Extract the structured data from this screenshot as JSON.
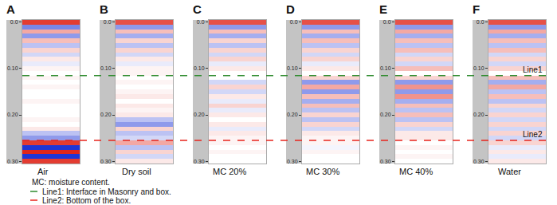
{
  "chart_data": {
    "type": "heatmap",
    "depth": [
      0,
      0.01,
      0.02,
      0.03,
      0.04,
      0.05,
      0.06,
      0.07,
      0.08,
      0.09,
      0.1,
      0.11,
      0.12,
      0.13,
      0.14,
      0.15,
      0.16,
      0.17,
      0.18,
      0.19,
      0.2,
      0.21,
      0.22,
      0.23,
      0.24,
      0.25,
      0.26,
      0.27,
      0.28,
      0.29,
      0.3
    ],
    "ylim": [
      0.305,
      -0.005
    ],
    "yticks": [
      {
        "value": 0,
        "label": "0.0"
      },
      {
        "value": 0.1,
        "label": "0.10"
      },
      {
        "value": 0.2,
        "label": "0.20"
      },
      {
        "value": 0.3,
        "label": "0.30"
      }
    ],
    "tick_labels": "y",
    "zlim": [
      -1,
      1
    ],
    "colors": [
      "#1f35d6",
      "#ffffff",
      "#e0261a"
    ],
    "panels": [
      {
        "letter": "A",
        "caption": "Air",
        "z": [
          0.9,
          -0.6,
          0.4,
          -0.5,
          0.3,
          -0.3,
          0.2,
          -0.2,
          0.1,
          -0.1,
          0.05,
          0,
          0.05,
          0,
          0.05,
          0,
          0,
          0.05,
          0,
          0,
          0,
          0.05,
          0,
          0.1,
          -0.3,
          -0.5,
          0.9,
          -1,
          1,
          -1,
          0.9
        ]
      },
      {
        "letter": "B",
        "caption": "Dry soil",
        "z": [
          0.8,
          -0.5,
          0.3,
          -0.4,
          0.2,
          -0.3,
          0.2,
          -0.2,
          0.1,
          -0.1,
          0.05,
          0.05,
          0,
          0.05,
          0,
          0.05,
          0.1,
          0,
          0.1,
          0.05,
          0.1,
          -0.3,
          -0.5,
          0.2,
          -0.3,
          -0.2,
          0.4,
          -0.3,
          0.2,
          -0.2,
          0.1
        ]
      },
      {
        "letter": "C",
        "caption": "MC 20%",
        "z": [
          0.8,
          -0.5,
          0.3,
          -0.4,
          0.2,
          -0.3,
          0.2,
          -0.2,
          0.2,
          -0.1,
          0.1,
          0,
          0,
          -0.2,
          0.2,
          -0.2,
          0.1,
          -0.1,
          0.2,
          -0.1,
          0.1,
          0,
          0.1,
          -0.1,
          0.1,
          0.05,
          0.05,
          0,
          0.05,
          0,
          0
        ]
      },
      {
        "letter": "D",
        "caption": "MC 30%",
        "z": [
          0.8,
          -0.5,
          0.3,
          -0.4,
          0.3,
          -0.3,
          0.2,
          -0.2,
          0.2,
          -0.1,
          0.1,
          0,
          0.2,
          -0.5,
          0.4,
          -0.5,
          0.3,
          -0.4,
          0.3,
          -0.3,
          0.2,
          -0.3,
          0.2,
          -0.2,
          0.1,
          0.05,
          0.05,
          -0.05,
          0.05,
          0,
          0
        ]
      },
      {
        "letter": "E",
        "caption": "MC 40%",
        "z": [
          0.8,
          -0.5,
          0.4,
          -0.4,
          0.3,
          -0.3,
          0.3,
          -0.2,
          0.2,
          -0.2,
          0.3,
          0,
          0.2,
          -0.5,
          0.5,
          -0.5,
          0.5,
          -0.4,
          0.3,
          -0.3,
          0.3,
          -0.3,
          0.2,
          -0.2,
          0.1,
          0.1,
          0,
          0.05,
          0,
          0.05,
          0
        ]
      },
      {
        "letter": "F",
        "caption": "Water",
        "z": [
          0.8,
          -0.5,
          0.4,
          -0.4,
          0.3,
          -0.3,
          0.3,
          -0.2,
          0.2,
          -0.2,
          0.2,
          0,
          0.3,
          -0.4,
          0.4,
          -0.3,
          0.3,
          -0.3,
          0.2,
          -0.2,
          0.2,
          -0.2,
          0.2,
          -0.2,
          0.2,
          -0.2,
          0.2,
          -0.1,
          0.1,
          -0.1,
          0.1
        ]
      }
    ],
    "notes": [
      "MC: moisture content."
    ],
    "lines": [
      {
        "label": "Line1",
        "value": 0.115,
        "color": "#2e8b2e",
        "line_style": "dash",
        "description": "Line1: Interface in Masonry and box."
      },
      {
        "label": "Line2",
        "value": 0.255,
        "color": "#e8241c",
        "line_style": "dash",
        "description": "Line2: Bottom of the box."
      }
    ]
  }
}
